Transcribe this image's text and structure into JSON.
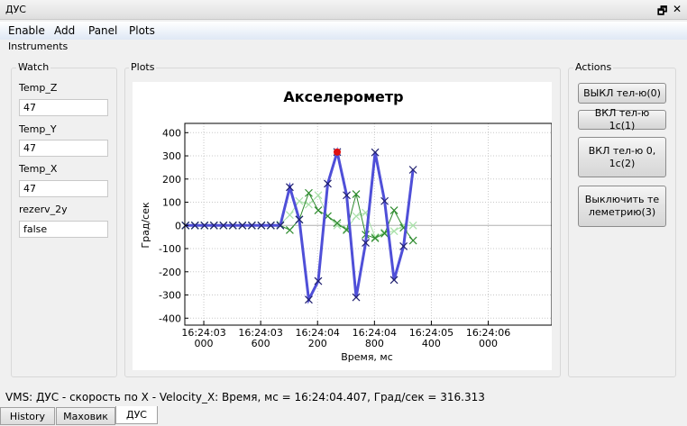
{
  "window": {
    "title": "ДУС",
    "restore_icon": "restore-icon",
    "close_icon": "close-icon"
  },
  "menu": [
    "Enable",
    "Add",
    "Panel",
    "Plots"
  ],
  "instruments_label": "Instruments",
  "watch": {
    "title": "Watch",
    "fields": [
      {
        "label": "Temp_Z",
        "value": "47"
      },
      {
        "label": "Temp_Y",
        "value": "47"
      },
      {
        "label": "Temp_X",
        "value": "47"
      },
      {
        "label": "rezerv_2y",
        "value": "false"
      }
    ]
  },
  "plots": {
    "title": "Plots"
  },
  "actions": {
    "title": "Actions",
    "buttons": [
      "ВЫКЛ тел-ю(0)",
      "ВКЛ тел-ю 1с(1)",
      "ВКЛ тел-ю 0, 1с(2)",
      "Выключить те леметрию(3)"
    ]
  },
  "status": "VMS: ДУС  - скорость по X - Velocity_X: Время, мс = 16:24:04.407, Град/сек = 316.313",
  "tabs": [
    {
      "label": "History",
      "active": false
    },
    {
      "label": "Маховик",
      "active": false
    },
    {
      "label": "ДУС",
      "active": true
    }
  ],
  "chart_data": {
    "type": "line",
    "title": "Акселерометр",
    "xlabel": "Время, мс",
    "ylabel": "Град/сек",
    "xlim": [
      "16:24:02.800",
      "16:24:06.670"
    ],
    "ylim": [
      -430,
      440
    ],
    "grid": true,
    "x_ticks": [
      {
        "time": "16:24:03.000",
        "line1": "16:24:03",
        "line2": "000"
      },
      {
        "time": "16:24:03.600",
        "line1": "16:24:03",
        "line2": "600"
      },
      {
        "time": "16:24:04.200",
        "line1": "16:24:04",
        "line2": "200"
      },
      {
        "time": "16:24:04.800",
        "line1": "16:24:04",
        "line2": "800"
      },
      {
        "time": "16:24:05.400",
        "line1": "16:24:05",
        "line2": "400"
      },
      {
        "time": "16:24:06.000",
        "line1": "16:24:06",
        "line2": "000"
      }
    ],
    "y_ticks": [
      "400",
      "300",
      "200",
      "100",
      "0",
      "-100",
      "-200",
      "-300",
      "-400"
    ],
    "x": [
      "16:24:02.807",
      "16:24:02.907",
      "16:24:03.007",
      "16:24:03.107",
      "16:24:03.207",
      "16:24:03.307",
      "16:24:03.407",
      "16:24:03.507",
      "16:24:03.607",
      "16:24:03.707",
      "16:24:03.807",
      "16:24:03.907",
      "16:24:04.007",
      "16:24:04.107",
      "16:24:04.207",
      "16:24:04.307",
      "16:24:04.407",
      "16:24:04.507",
      "16:24:04.607",
      "16:24:04.707",
      "16:24:04.807",
      "16:24:04.907",
      "16:24:05.007",
      "16:24:05.107",
      "16:24:05.207"
    ],
    "series": [
      {
        "color": "#a8e0a8",
        "width": 1,
        "values": [
          0,
          0,
          0,
          0,
          0,
          0,
          0,
          0,
          0,
          0,
          5,
          45,
          105,
          90,
          130,
          40,
          0,
          -15,
          40,
          55,
          -50,
          -30,
          -25,
          0,
          0
        ]
      },
      {
        "color": "#2e8b2e",
        "width": 1,
        "values": [
          0,
          0,
          0,
          0,
          0,
          0,
          0,
          0,
          0,
          0,
          0,
          -20,
          25,
          140,
          65,
          40,
          10,
          -20,
          135,
          -40,
          -55,
          -35,
          65,
          -10,
          -65
        ]
      },
      {
        "color": "#4f4fd8",
        "width": 3,
        "values": [
          0,
          0,
          0,
          0,
          0,
          0,
          0,
          0,
          0,
          0,
          0,
          165,
          25,
          -320,
          -240,
          180,
          316.313,
          130,
          -310,
          -75,
          315,
          105,
          -235,
          -90,
          240
        ]
      }
    ],
    "highlight": {
      "time": "16:24:04.407",
      "value": 316.313,
      "color": "#e01010"
    }
  }
}
